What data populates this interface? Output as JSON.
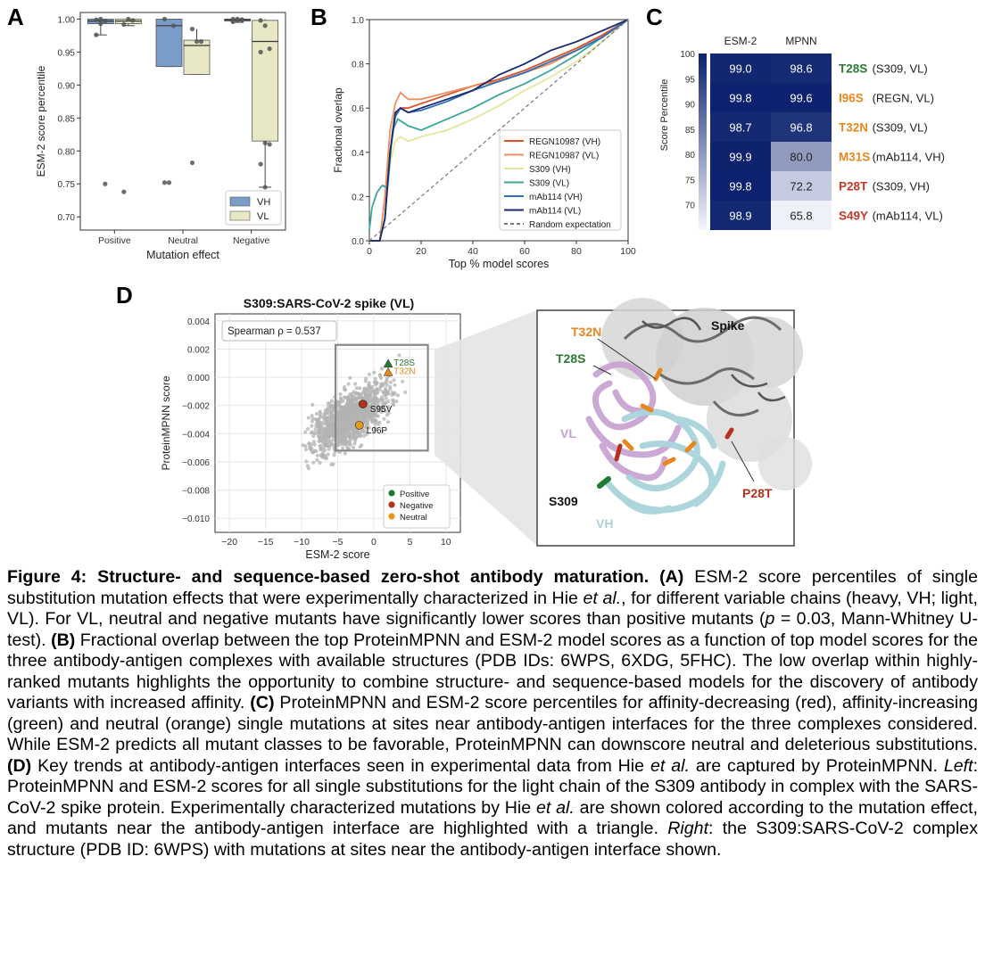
{
  "panel_letters": {
    "a": "A",
    "b": "B",
    "c": "C",
    "d": "D"
  },
  "chart_data": [
    {
      "panel": "A",
      "type": "box",
      "ylabel": "ESM-2 score percentile",
      "xlabel": "Mutation effect",
      "categories": [
        "Positive",
        "Neutral",
        "Negative"
      ],
      "ylim": [
        0.68,
        1.01
      ],
      "yticks": [
        "0.70",
        "0.75",
        "0.80",
        "0.85",
        "0.90",
        "0.95",
        "1.00"
      ],
      "legend_position": "lower-right",
      "series": [
        {
          "name": "VH",
          "color": "#7a9cc8",
          "boxes": [
            {
              "q1": 0.993,
              "median": 0.997,
              "q3": 1.0,
              "whisker_low": 0.976,
              "whisker_high": 1.0,
              "points": [
                0.976,
                0.993,
                0.997,
                0.999,
                1.0,
                0.75
              ]
            },
            {
              "q1": 0.928,
              "median": 0.99,
              "q3": 1.0,
              "whisker_low": 0.928,
              "whisker_high": 1.0,
              "points": [
                0.752,
                0.752,
                0.99,
                1.0
              ]
            },
            {
              "q1": 0.997,
              "median": 0.999,
              "q3": 1.0,
              "whisker_low": 0.995,
              "whisker_high": 1.0,
              "points": [
                0.996,
                0.998,
                0.999,
                1.0,
                1.0,
                0.999
              ]
            }
          ]
        },
        {
          "name": "VL",
          "color": "#e8e8c4",
          "boxes": [
            {
              "q1": 0.993,
              "median": 0.997,
              "q3": 1.0,
              "whisker_low": 0.99,
              "whisker_high": 1.0,
              "points": [
                0.992,
                1.0,
                0.998,
                0.738
              ]
            },
            {
              "q1": 0.916,
              "median": 0.96,
              "q3": 0.968,
              "whisker_low": 0.916,
              "whisker_high": 0.985,
              "points": [
                0.985,
                0.966,
                0.966,
                0.782
              ]
            },
            {
              "q1": 0.815,
              "median": 0.966,
              "q3": 0.998,
              "whisker_low": 0.745,
              "whisker_high": 1.0,
              "points": [
                0.998,
                0.99,
                0.955,
                0.95,
                0.812,
                0.81,
                0.78,
                0.745
              ]
            }
          ]
        }
      ]
    },
    {
      "panel": "B",
      "type": "line",
      "xlabel": "Top % model scores",
      "ylabel": "Fractional overlap",
      "xlim": [
        0,
        100
      ],
      "ylim": [
        0,
        1
      ],
      "xticks": [
        "0",
        "20",
        "40",
        "60",
        "80",
        "100"
      ],
      "yticks": [
        "0.0",
        "0.2",
        "0.4",
        "0.6",
        "0.8",
        "1.0"
      ],
      "legend_position": "lower-right",
      "series": [
        {
          "name": "REGN10987 (VH)",
          "color": "#d9512b",
          "x": [
            0,
            4,
            6,
            8,
            10,
            12,
            15,
            20,
            30,
            40,
            50,
            60,
            70,
            80,
            90,
            100
          ],
          "y": [
            0.0,
            0.0,
            0.1,
            0.4,
            0.57,
            0.6,
            0.6,
            0.62,
            0.66,
            0.7,
            0.73,
            0.77,
            0.82,
            0.87,
            0.93,
            1.0
          ]
        },
        {
          "name": "REGN10987 (VL)",
          "color": "#ef8f5e",
          "x": [
            0,
            4,
            6,
            8,
            10,
            12,
            15,
            20,
            30,
            40,
            50,
            60,
            70,
            80,
            90,
            100
          ],
          "y": [
            0.0,
            0.0,
            0.2,
            0.5,
            0.62,
            0.67,
            0.64,
            0.64,
            0.67,
            0.7,
            0.72,
            0.76,
            0.8,
            0.86,
            0.92,
            1.0
          ]
        },
        {
          "name": "S309 (VH)",
          "color": "#e4e6a0",
          "x": [
            0,
            4,
            6,
            8,
            10,
            12,
            15,
            20,
            30,
            40,
            50,
            60,
            70,
            80,
            90,
            100
          ],
          "y": [
            0.0,
            0.0,
            0.1,
            0.35,
            0.45,
            0.47,
            0.45,
            0.47,
            0.5,
            0.55,
            0.61,
            0.68,
            0.74,
            0.81,
            0.9,
            1.0
          ]
        },
        {
          "name": "S309 (VL)",
          "color": "#3aa79a",
          "x": [
            0,
            1,
            3,
            5,
            7,
            9,
            11,
            15,
            20,
            30,
            40,
            50,
            60,
            70,
            80,
            90,
            100
          ],
          "y": [
            0.05,
            0.15,
            0.22,
            0.25,
            0.24,
            0.5,
            0.55,
            0.52,
            0.5,
            0.55,
            0.6,
            0.66,
            0.71,
            0.77,
            0.84,
            0.92,
            1.0
          ]
        },
        {
          "name": "mAb114 (VH)",
          "color": "#2f6fb5",
          "x": [
            0,
            4,
            6,
            8,
            10,
            12,
            15,
            20,
            30,
            40,
            50,
            60,
            70,
            80,
            90,
            100
          ],
          "y": [
            0.0,
            0.0,
            0.1,
            0.4,
            0.56,
            0.6,
            0.58,
            0.59,
            0.63,
            0.68,
            0.72,
            0.76,
            0.81,
            0.86,
            0.92,
            1.0
          ]
        },
        {
          "name": "mAb114 (VL)",
          "color": "#1b2a6e",
          "x": [
            0,
            4,
            6,
            8,
            10,
            12,
            15,
            20,
            30,
            40,
            50,
            60,
            70,
            80,
            90,
            100
          ],
          "y": [
            0.0,
            0.0,
            0.1,
            0.4,
            0.58,
            0.6,
            0.58,
            0.6,
            0.64,
            0.68,
            0.75,
            0.8,
            0.86,
            0.9,
            0.95,
            1.0
          ]
        },
        {
          "name": "Random expectation",
          "color": "#777777",
          "dashed": true,
          "x": [
            0,
            100
          ],
          "y": [
            0,
            1
          ]
        }
      ]
    },
    {
      "panel": "C",
      "type": "heatmap",
      "columns": [
        "ESM-2",
        "MPNN"
      ],
      "colorbar_label": "Score Percentile",
      "colorbar_ticks": [
        "100",
        "95",
        "90",
        "85",
        "80",
        "75",
        "70"
      ],
      "colorbar_range": [
        65,
        100
      ],
      "rows": [
        {
          "mutation": "T28S",
          "complex": "(S309, VL)",
          "color": "#2b7a34",
          "values": [
            99.0,
            98.6
          ]
        },
        {
          "mutation": "I96S",
          "complex": "(REGN, VL)",
          "color": "#e8871e",
          "values": [
            99.8,
            99.6
          ]
        },
        {
          "mutation": "T32N",
          "complex": "(S309, VL)",
          "color": "#e8871e",
          "values": [
            98.7,
            96.8
          ]
        },
        {
          "mutation": "M31S",
          "complex": "(mAb114, VH)",
          "color": "#e8871e",
          "values": [
            99.9,
            80.0
          ]
        },
        {
          "mutation": "P28T",
          "complex": "(S309, VH)",
          "color": "#c0392b",
          "values": [
            99.8,
            72.2
          ]
        },
        {
          "mutation": "S49Y",
          "complex": "(mAb114, VL)",
          "color": "#c0392b",
          "values": [
            98.9,
            65.8
          ]
        }
      ]
    },
    {
      "panel": "D",
      "type": "scatter",
      "title": "S309:SARS-CoV-2 spike (VL)",
      "xlabel": "ESM-2 score",
      "ylabel": "ProteinMPNN score",
      "xlim": [
        -22,
        12
      ],
      "ylim": [
        -0.011,
        0.0045
      ],
      "xticks": [
        "−20",
        "−15",
        "−10",
        "−5",
        "0",
        "5",
        "10"
      ],
      "yticks": [
        "0.004",
        "0.002",
        "0.000",
        "−0.002",
        "−0.004",
        "−0.006",
        "−0.008",
        "−0.010"
      ],
      "annotation": "Spearman ρ = 0.537",
      "legend_position": "lower-right",
      "legend": [
        {
          "name": "Positive",
          "color": "#1e7a2e"
        },
        {
          "name": "Negative",
          "color": "#b5301d"
        },
        {
          "name": "Neutral",
          "color": "#e39a1a"
        }
      ],
      "highlighted": [
        {
          "label": "T28S",
          "x": 2.0,
          "y": 0.0009,
          "marker": "triangle",
          "color": "#2b7a34"
        },
        {
          "label": "T32N",
          "x": 2.0,
          "y": 0.0003,
          "marker": "triangle",
          "color": "#e8871e"
        },
        {
          "label": "S95V",
          "x": -1.5,
          "y": -0.0019,
          "marker": "circle",
          "color": "#b5301d"
        },
        {
          "label": "L96P",
          "x": -2.0,
          "y": -0.0034,
          "marker": "circle",
          "color": "#e39a1a"
        }
      ],
      "background_points": "approx. 1,200 grey single-substitution points centred near ESM-2 ≈ −3, ProteinMPNN ≈ −0.003"
    }
  ],
  "structure_labels": {
    "spike": "Spike",
    "t32n": "T32N",
    "t28s": "T28S",
    "vl": "VL",
    "s309": "S309",
    "vh": "VH",
    "p28t": "P28T"
  },
  "caption": {
    "fig_label": "Figure 4: Structure- and sequence-based zero-shot antibody maturation.",
    "a_label": "(A)",
    "a_text_1": "ESM-2 score percentiles of single substitution mutation effects that were experimentally characterized in Hie",
    "et_al": "et al.",
    "a_text_2": ", for different variable chains (heavy, VH; light, VL). For VL, neutral and negative mutants have significantly lower scores than positive mutants (",
    "p_italic": "p",
    "a_text_3": "= 0.03, Mann-Whitney U-test).",
    "b_label": "(B)",
    "b_text": "Fractional overlap between the top ProteinMPNN and ESM-2 model scores as a function of top model scores for the three antibody-antigen complexes with available structures (PDB IDs: 6WPS, 6XDG, 5FHC). The low overlap within highly-ranked mutants highlights the opportunity to combine structure- and sequence-based models for the discovery of antibody variants with increased affinity.",
    "c_label": "(C)",
    "c_text": "ProteinMPNN and ESM-2 score percentiles for affinity-decreasing (red), affinity-increasing (green) and neutral (orange) single mutations at sites near antibody-antigen interfaces for the three complexes considered. While ESM-2 predicts all mutant classes to be favorable, ProteinMPNN can downscore neutral and deleterious substitutions.",
    "d_label": "(D)",
    "d_text_1": "Key trends at antibody-antigen interfaces seen in experimental data from Hie",
    "d_text_2": "are captured by ProteinMPNN.",
    "left_italic": "Left",
    "d_text_3": ": ProteinMPNN and ESM-2 scores for all single substitutions for the light chain of the S309 antibody in complex with the SARS-CoV-2 spike protein. Experimentally characterized mutations by Hie",
    "d_text_4": "are shown colored according to the mutation effect, and mutants near the antibody-antigen interface are highlighted with a triangle.",
    "right_italic": "Right",
    "d_text_5": ": the S309:SARS-CoV-2 complex structure (PDB ID: 6WPS) with mutations at sites near the antibody-antigen interface shown."
  }
}
